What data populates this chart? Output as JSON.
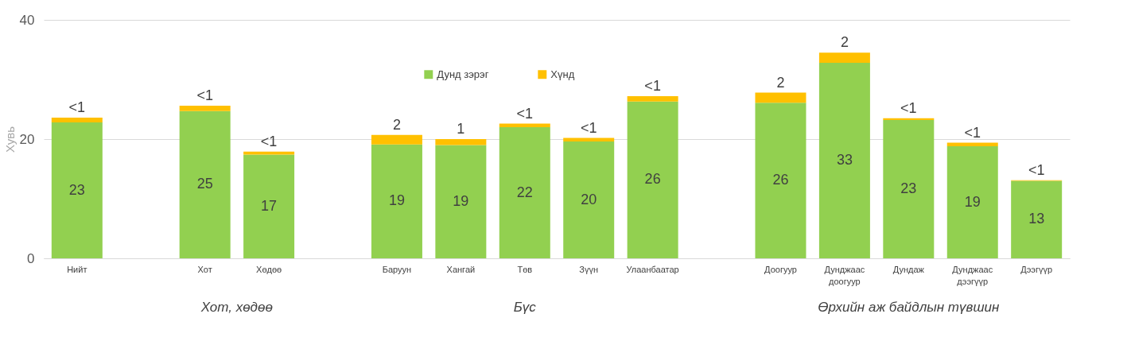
{
  "chart_data": {
    "type": "bar",
    "stacked": true,
    "ylabel": "Хувь",
    "categories": [
      "Нийт",
      null,
      "Хот",
      "Хөдөө",
      null,
      "Баруун",
      "Хангай",
      "Төв",
      "Зүүн",
      "Улаанбаатар",
      null,
      "Доогуур",
      "Дунджаас доогуур",
      "Дундаж",
      "Дунджаас дээгүүр",
      "Дээгүүр"
    ],
    "series": [
      {
        "name": "Дунд зэрэг",
        "color": "#92d050",
        "values": [
          22.8,
          null,
          24.7,
          17.4,
          null,
          19.1,
          19.0,
          22.0,
          19.6,
          26.3,
          null,
          26.1,
          32.8,
          23.2,
          18.8,
          13.0
        ],
        "value_labels": [
          "23",
          null,
          "25",
          "17",
          null,
          "19",
          "19",
          "22",
          "20",
          "26",
          null,
          "26",
          "33",
          "23",
          "19",
          "13"
        ]
      },
      {
        "name": "Хүнд",
        "color": "#ffc000",
        "values": [
          0.8,
          null,
          0.9,
          0.5,
          null,
          1.6,
          1.0,
          0.6,
          0.6,
          0.9,
          null,
          1.7,
          1.7,
          0.3,
          0.6,
          0.1
        ],
        "value_labels": [
          "<1",
          null,
          "<1",
          "<1",
          null,
          "2",
          "1",
          "<1",
          "<1",
          "<1",
          null,
          "2",
          "2",
          "<1",
          "<1",
          "<1"
        ]
      }
    ],
    "ylim": [
      0,
      40
    ],
    "yticks": [
      0,
      20,
      40
    ],
    "grid": "y",
    "legend": "top",
    "annotations": [
      "Хот, хөдөө",
      "Бүс",
      "Өрхийн аж байдлын түвшин"
    ]
  }
}
